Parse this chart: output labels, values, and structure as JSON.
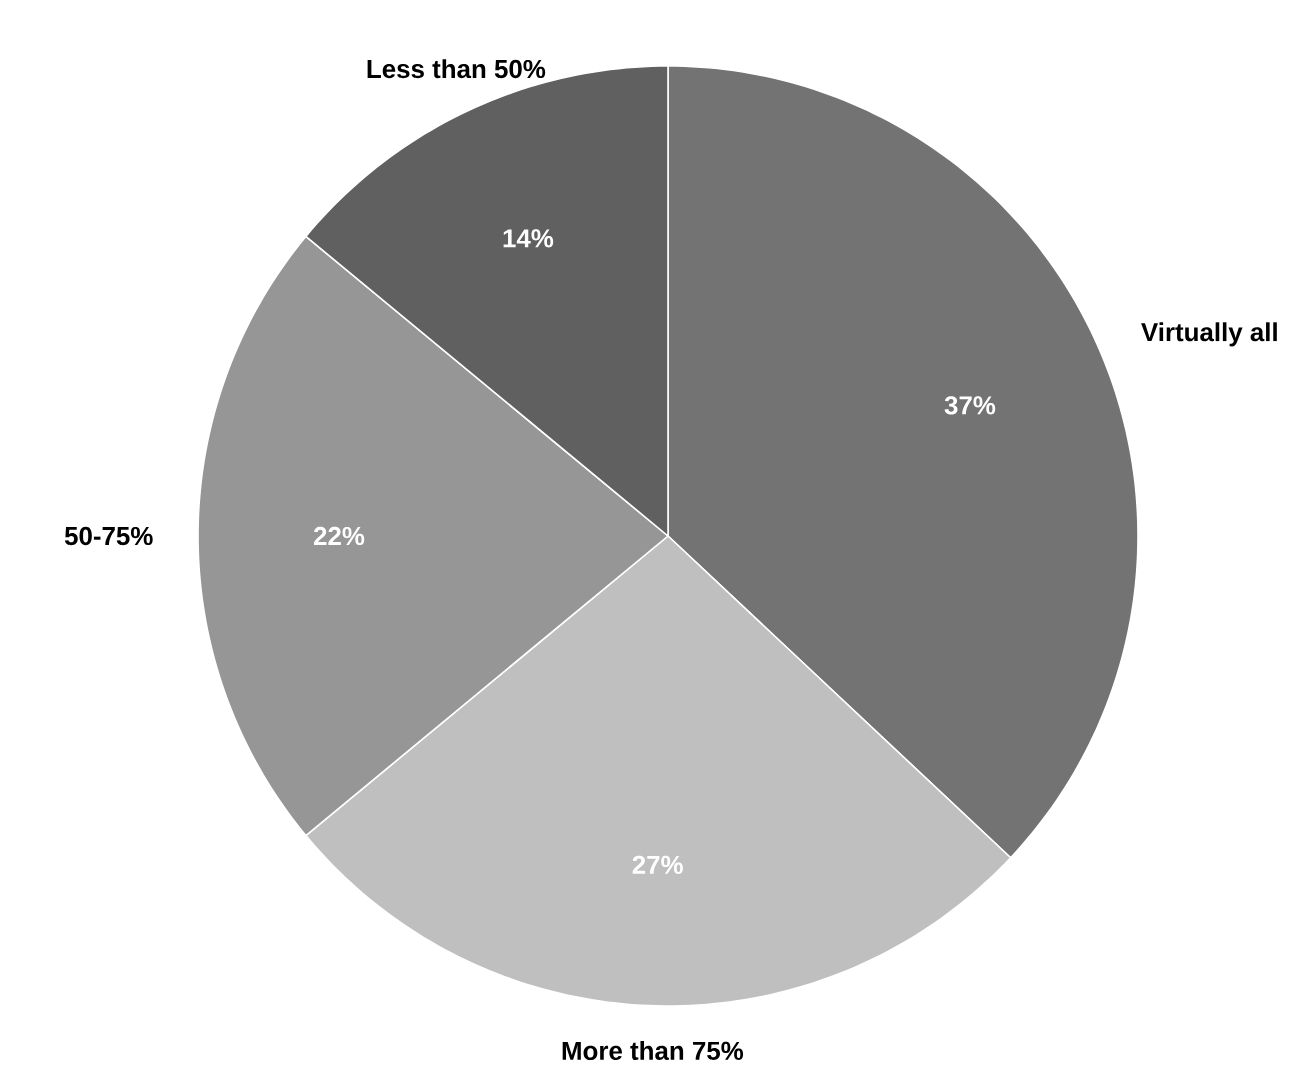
{
  "chart_data": {
    "type": "pie",
    "categories": [
      "Virtually all",
      "More than 75%",
      "50-75%",
      "Less than 50%"
    ],
    "values": [
      37,
      27,
      22,
      14
    ],
    "colors": [
      "#737373",
      "#bfbfbf",
      "#969696",
      "#606060"
    ],
    "value_labels": [
      "37%",
      "27%",
      "22%",
      "14%"
    ]
  }
}
